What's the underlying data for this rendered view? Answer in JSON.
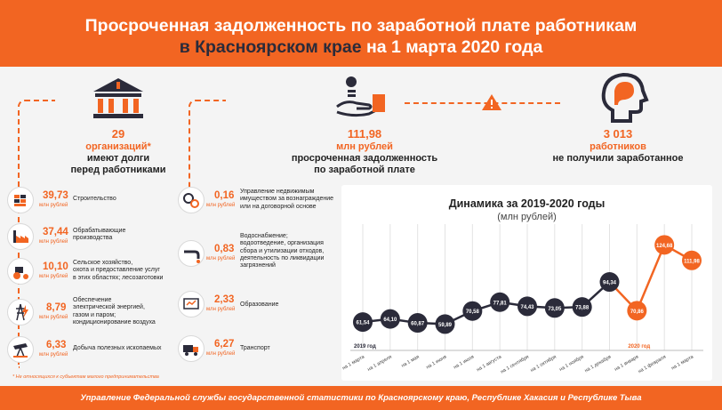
{
  "header": {
    "line1": "Просроченная задолженность по заработной плате работникам",
    "line2_a": "в Красноярском крае",
    "line2_b": " на 1 марта 2020 года"
  },
  "summary": {
    "orgs_value": "29",
    "orgs_unit": "организаций*",
    "orgs_text1": "имеют долги",
    "orgs_text2": "перед работниками",
    "debt_value": "111,98",
    "debt_unit": "млн рублей",
    "debt_text1": "просроченная задолженность",
    "debt_text2": "по заработной плате",
    "workers_value": "3 013",
    "workers_unit": "работников",
    "workers_text": "не получили заработанное"
  },
  "sectors_left": [
    {
      "value": "39,73",
      "unit": "млн рублей",
      "icon": "bricks-icon",
      "label": "Строительство"
    },
    {
      "value": "37,44",
      "unit": "млн рублей",
      "icon": "factory-icon",
      "label": "Обрабатывающие\nпроизводства"
    },
    {
      "value": "10,10",
      "unit": "млн рублей",
      "icon": "tractor-icon",
      "label": "Сельское хозяйство,\nохота и предоставление услуг\nв этих областях; лесозаготовки"
    },
    {
      "value": "8,79",
      "unit": "млн рублей",
      "icon": "power-tower-icon",
      "label": "Обеспечение\nэлектрической энергией,\nгазом и паром;\nкондиционирование воздуха"
    },
    {
      "value": "6,33",
      "unit": "млн рублей",
      "icon": "oil-pump-icon",
      "label": "Добыча полезных ископаемых"
    }
  ],
  "sectors_right": [
    {
      "value": "0,16",
      "unit": "млн рублей",
      "icon": "gears-icon",
      "label": "Управление недвижимым\nимуществом за вознаграждение\nили на договорной основе"
    },
    {
      "value": "0,83",
      "unit": "млн рублей",
      "icon": "water-pipe-icon",
      "label": "Водоснабжение;\nводоотведение, организация\nсбора и утилизации отходов,\nдеятельность по ликвидации\nзагрязнений"
    },
    {
      "value": "2,33",
      "unit": "млн рублей",
      "icon": "presentation-icon",
      "label": "Образование"
    },
    {
      "value": "6,27",
      "unit": "млн рублей",
      "icon": "truck-icon",
      "label": "Транспорт"
    }
  ],
  "note": "* Не относящихся к субъектам малого предпринимательства",
  "footer": "Управление Федеральной службы государственной статистики по Красноярскому краю, Республике Хакасия и Республике Тыва",
  "chart_data": {
    "type": "line",
    "title": "Динамика за 2019-2020 годы",
    "subtitle": "(млн рублей)",
    "categories": [
      "на 1 марта",
      "на 1 апреля",
      "на 1 мая",
      "на 1 июня",
      "на 1 июля",
      "на 1 августа",
      "на 1 сентября",
      "на 1 октября",
      "на 1 ноября",
      "на 1 декабря",
      "на 1 января",
      "на 1 февраля",
      "на 1 марта"
    ],
    "values": [
      61.54,
      64.1,
      60.87,
      59.89,
      70.58,
      77.81,
      74.43,
      73.05,
      73.88,
      94.34,
      70.86,
      124.68,
      111.98
    ],
    "labels": [
      "61,54",
      "64,10",
      "60,87",
      "59,89",
      "70,58",
      "77,81",
      "74,43",
      "73,05",
      "73,88",
      "94,34",
      "70,86",
      "124,68",
      "111,98"
    ],
    "year_labels": [
      "2019 год",
      "2020 год"
    ],
    "colors": {
      "2019": "#2b2b3a",
      "2020": "#f26522"
    }
  }
}
